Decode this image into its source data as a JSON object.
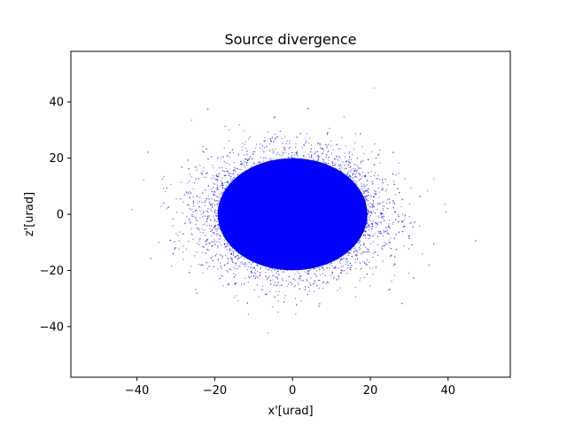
{
  "chart_data": {
    "type": "scatter",
    "title": "Source divergence",
    "xlabel": "x'[urad]",
    "ylabel": "z'[urad]",
    "xlim": [
      -57,
      56
    ],
    "ylim": [
      -58,
      58
    ],
    "xticks": [
      -40,
      -20,
      0,
      20,
      40
    ],
    "yticks": [
      -40,
      -20,
      0,
      20,
      40
    ],
    "grid": false,
    "legend": "none",
    "series": [
      {
        "color": "#0000ff",
        "distribution": "2D Gaussian point cloud centred at (0, 0)",
        "center": [
          0,
          0
        ],
        "sigma_x": 11,
        "sigma_y": 10.5,
        "x_extent": [
          -52,
          50
        ],
        "y_extent": [
          -54,
          52
        ]
      }
    ]
  }
}
